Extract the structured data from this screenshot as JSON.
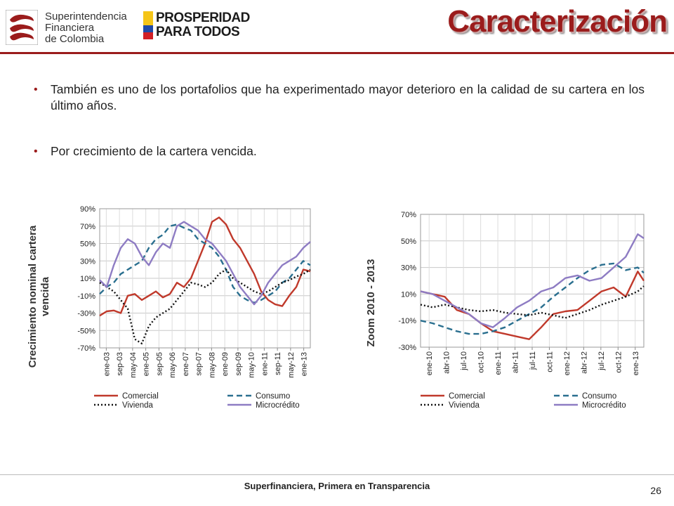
{
  "header": {
    "sfc_logo_lines": [
      "Superintendencia",
      "Financiera",
      "de Colombia"
    ],
    "pxt_logo_lines": [
      "PROSPERIDAD",
      "PARA TODOS"
    ],
    "title": "Caracterización",
    "rule_color": "#9b1c1c"
  },
  "bullets": [
    {
      "icon": "bullet-dot",
      "text": "También es uno de los portafolios que ha experimentado mayor deterioro en la calidad de su cartera en los último años."
    },
    {
      "icon": "bullet-dot",
      "text": "Por crecimiento de la cartera vencida."
    }
  ],
  "footer": {
    "text": "Superfinanciera, Primera en Transparencia",
    "page_number": "26"
  },
  "chart_data": [
    {
      "type": "line",
      "ylabel": "Crecimiento nominal cartera vencida",
      "ylim": [
        -70,
        90
      ],
      "yticks": [
        90,
        70,
        50,
        30,
        10,
        -10,
        -30,
        -50,
        -70
      ],
      "ytick_labels": [
        "90%",
        "70%",
        "50%",
        "30%",
        "10%",
        "-10%",
        "-30%",
        "-50%",
        "-70%"
      ],
      "xtick_labels": [
        "ene-03",
        "sep-03",
        "may-04",
        "ene-05",
        "sep-05",
        "may-06",
        "ene-07",
        "sep-07",
        "may-08",
        "ene-09",
        "sep-09",
        "may-10",
        "ene-11",
        "sep-11",
        "may-12",
        "ene-13"
      ],
      "grid": true,
      "legend": "bottom",
      "x": [
        0,
        4,
        8,
        12,
        16,
        20,
        24,
        28,
        32,
        36,
        40,
        44,
        48,
        52,
        56,
        60,
        64,
        68,
        72,
        76,
        80,
        84,
        88,
        92,
        96,
        100,
        104,
        108,
        112,
        116,
        120
      ],
      "series": [
        {
          "name": "Comercial",
          "color": "#c0392b",
          "style": "solid",
          "values": [
            -33,
            -28,
            -27,
            -30,
            -10,
            -8,
            -15,
            -10,
            -5,
            -12,
            -8,
            5,
            0,
            10,
            30,
            50,
            75,
            80,
            72,
            55,
            45,
            30,
            15,
            -5,
            -15,
            -20,
            -22,
            -10,
            0,
            20,
            18
          ]
        },
        {
          "name": "Consumo",
          "color": "#2a6f8f",
          "style": "dashed",
          "values": [
            -8,
            0,
            5,
            15,
            20,
            25,
            30,
            45,
            55,
            60,
            70,
            72,
            68,
            65,
            55,
            50,
            45,
            35,
            20,
            0,
            -10,
            -15,
            -18,
            -15,
            -10,
            -5,
            5,
            10,
            20,
            30,
            25
          ]
        },
        {
          "name": "Vivienda",
          "color": "#111111",
          "style": "dotted",
          "values": [
            5,
            0,
            -5,
            -15,
            -25,
            -60,
            -65,
            -45,
            -35,
            -30,
            -25,
            -15,
            -5,
            5,
            3,
            0,
            5,
            15,
            20,
            10,
            5,
            0,
            -5,
            -8,
            -5,
            0,
            5,
            8,
            12,
            15,
            20
          ]
        },
        {
          "name": "Microcrédito",
          "color": "#8e7cc3",
          "style": "solid",
          "values": [
            8,
            0,
            25,
            45,
            55,
            50,
            35,
            25,
            40,
            50,
            45,
            70,
            75,
            70,
            65,
            55,
            50,
            40,
            30,
            15,
            0,
            -10,
            -20,
            -10,
            5,
            15,
            25,
            30,
            35,
            45,
            52
          ]
        }
      ]
    },
    {
      "type": "line",
      "ylabel": "Zoom 2010 - 2013",
      "ylim": [
        -30,
        70
      ],
      "yticks": [
        70,
        50,
        30,
        10,
        -10,
        -30
      ],
      "ytick_labels": [
        "70%",
        "50%",
        "30%",
        "10%",
        "-10%",
        "-30%"
      ],
      "xtick_labels": [
        "ene-10",
        "abr-10",
        "jul-10",
        "oct-10",
        "ene-11",
        "abr-11",
        "jul-11",
        "oct-11",
        "ene-12",
        "abr-12",
        "jul-12",
        "oct-12",
        "ene-13"
      ],
      "grid": true,
      "legend": "bottom",
      "x": [
        0,
        2,
        4,
        6,
        8,
        10,
        12,
        14,
        16,
        18,
        20,
        22,
        24,
        26,
        28,
        30,
        32,
        34,
        36,
        37
      ],
      "series": [
        {
          "name": "Comercial",
          "color": "#c0392b",
          "style": "solid",
          "values": [
            12,
            10,
            8,
            -2,
            -5,
            -12,
            -18,
            -20,
            -22,
            -24,
            -15,
            -5,
            -3,
            -2,
            5,
            12,
            15,
            8,
            27,
            20
          ]
        },
        {
          "name": "Consumo",
          "color": "#2a6f8f",
          "style": "dashed",
          "values": [
            -10,
            -12,
            -15,
            -18,
            -20,
            -20,
            -18,
            -15,
            -10,
            -5,
            0,
            8,
            15,
            22,
            28,
            32,
            33,
            28,
            30,
            26
          ]
        },
        {
          "name": "Vivienda",
          "color": "#111111",
          "style": "dotted",
          "values": [
            2,
            0,
            2,
            0,
            -2,
            -3,
            -2,
            -4,
            -5,
            -6,
            -4,
            -6,
            -8,
            -5,
            -2,
            2,
            5,
            8,
            12,
            16
          ]
        },
        {
          "name": "Microcrédito",
          "color": "#8e7cc3",
          "style": "solid",
          "values": [
            12,
            10,
            5,
            0,
            -5,
            -12,
            -15,
            -8,
            0,
            5,
            12,
            15,
            22,
            24,
            20,
            22,
            30,
            38,
            55,
            52
          ]
        }
      ]
    }
  ]
}
